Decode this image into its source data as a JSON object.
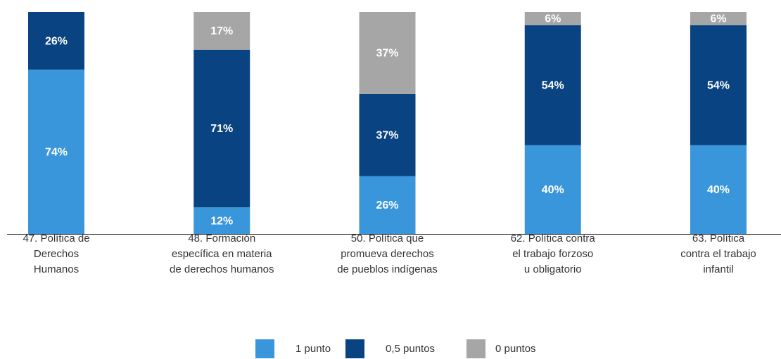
{
  "chart_data": {
    "type": "stacked_bar",
    "categories": [
      [
        "47. Política de",
        "Derechos",
        "Humanos"
      ],
      [
        "48. Formación",
        "específica en materia",
        "de derechos humanos"
      ],
      [
        "50. Política que",
        "promueva derechos",
        "de pueblos indígenas"
      ],
      [
        "62. Política contra",
        "el trabajo forzoso",
        "u obligatorio"
      ],
      [
        "63. Política",
        "contra el trabajo",
        "infantil"
      ]
    ],
    "series": [
      {
        "name": "1 punto",
        "color": "#3a96db",
        "values": [
          74,
          12,
          26,
          40,
          40
        ],
        "value_labels": [
          "74%",
          "12%",
          "26%",
          "40%",
          "40%"
        ]
      },
      {
        "name": "0,5 puntos",
        "color": "#0a4381",
        "values": [
          26,
          71,
          37,
          54,
          54
        ],
        "value_labels": [
          "26%",
          "71%",
          "37%",
          "54%",
          "54%"
        ]
      },
      {
        "name": "0 puntos",
        "color": "#a6a6a6",
        "values": [
          null,
          17,
          37,
          6,
          6
        ],
        "value_labels": [
          null,
          "17%",
          "37%",
          "6%",
          "6%"
        ]
      }
    ],
    "ylim": [
      0,
      100
    ],
    "legend": "bottom"
  }
}
